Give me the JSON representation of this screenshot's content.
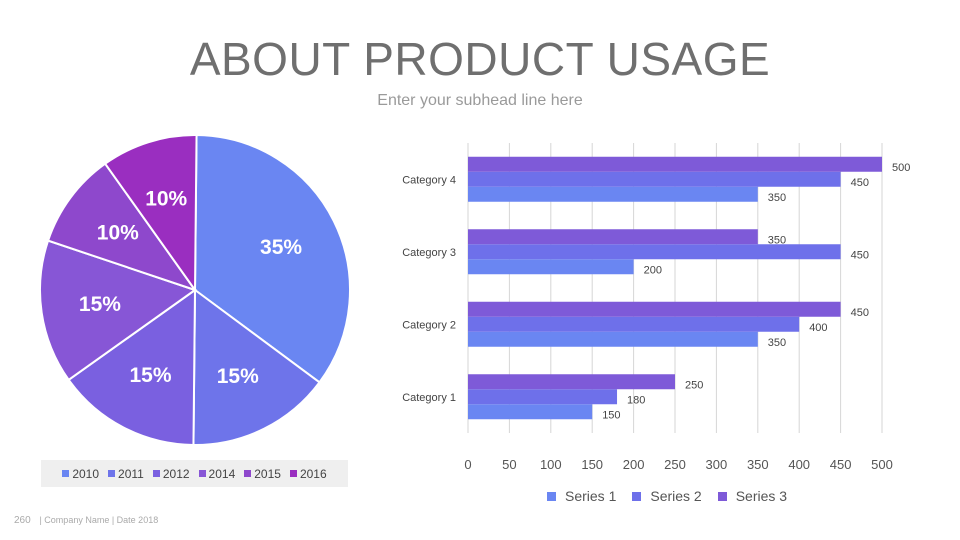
{
  "header": {
    "title": "ABOUT PRODUCT USAGE",
    "subtitle": "Enter your subhead line here"
  },
  "footer": {
    "page_number": "260",
    "company": "| Company Name | Date 2018"
  },
  "chart_data": [
    {
      "type": "pie",
      "slices": [
        {
          "label": "2010",
          "value": 35,
          "display": "35%",
          "color": "#6a86f2"
        },
        {
          "label": "2011",
          "value": 15,
          "display": "15%",
          "color": "#6e74ea"
        },
        {
          "label": "2012",
          "value": 15,
          "display": "15%",
          "color": "#7a60e0"
        },
        {
          "label": "2014",
          "value": 15,
          "display": "15%",
          "color": "#8756d6"
        },
        {
          "label": "2015",
          "value": 10,
          "display": "10%",
          "color": "#8e48cc"
        },
        {
          "label": "2016",
          "value": 10,
          "display": "10%",
          "color": "#9a2ec0"
        }
      ],
      "legend_position": "bottom"
    },
    {
      "type": "bar",
      "orientation": "horizontal",
      "categories": [
        "Category 1",
        "Category 2",
        "Category 3",
        "Category 4"
      ],
      "series": [
        {
          "name": "Series 1",
          "values": [
            150,
            350,
            200,
            350
          ],
          "color": "#6a86f2"
        },
        {
          "name": "Series 2",
          "values": [
            180,
            400,
            450,
            450
          ],
          "color": "#6e70ea"
        },
        {
          "name": "Series 3",
          "values": [
            250,
            450,
            350,
            500
          ],
          "color": "#7e5ad8"
        }
      ],
      "xlim": [
        0,
        500
      ],
      "xticks": [
        0,
        50,
        100,
        150,
        200,
        250,
        300,
        350,
        400,
        450,
        500
      ],
      "grid": true,
      "legend_position": "bottom"
    }
  ]
}
